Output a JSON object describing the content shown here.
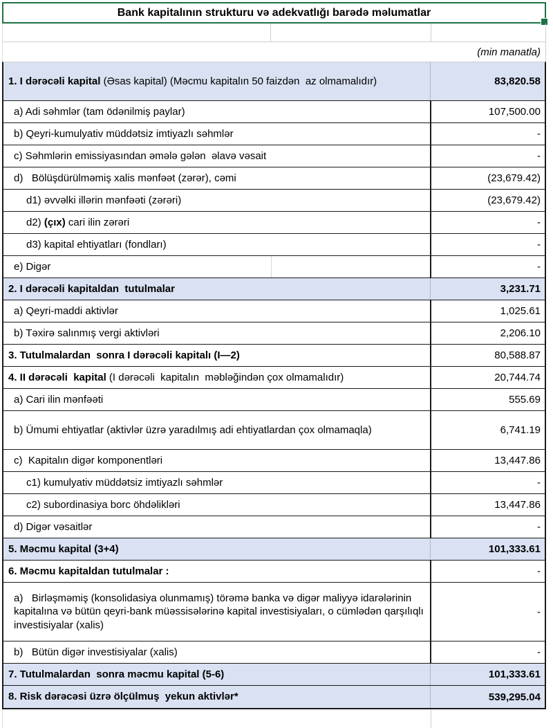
{
  "title": "Bank kapitalının strukturu və adekvatlığı barədə məlumatlar",
  "unit_note": "(min manatla)",
  "colors": {
    "highlight_blue": "#d9e1f2",
    "selection_green": "#1f7145",
    "border_dark": "#1a1a1a",
    "gridline_gray": "#cfcfcf"
  },
  "table": {
    "rows": [
      {
        "bold": "1. I dərəcəli kapital",
        "rest": " (Əsas kapital) (Məcmu kapitalın 50 faizdən  az olmamalıdır)",
        "value": "83,820.58"
      },
      {
        "pre": "a) Adi səhmlər (tam ödənilmiş paylar)",
        "value": "107,500.00"
      },
      {
        "pre": "b) Qeyri-kumulyativ müddətsiz imtiyazlı səhmlər",
        "value": "-"
      },
      {
        "pre": "c) Səhmlərin emissiyasından əmələ gələn  əlavə vəsait",
        "value": "-"
      },
      {
        "pre": "d)   Bölüşdürülməmiş xalis mənfəət (zərər), cəmi",
        "value": "(23,679.42)"
      },
      {
        "pre": "d1) əvvəlki illərin mənfəəti (zərəri)",
        "value": "(23,679.42)"
      },
      {
        "pre": "d2) ",
        "bold": "(çıx)",
        "rest": " cari ilin zərəri",
        "value": "-"
      },
      {
        "pre": "d3) kapital ehtiyatları (fondları)",
        "value": "-"
      },
      {
        "pre": "e) Digər",
        "value": "-"
      },
      {
        "bold": "2. I dərəcəli kapitaldan  tutulmalar",
        "value": "3,231.71"
      },
      {
        "pre": "a) Qeyri-maddi aktivlər",
        "value": "1,025.61"
      },
      {
        "pre": "b) Təxirə salınmış vergi aktivləri",
        "value": "2,206.10"
      },
      {
        "bold": "3. Tutulmalardan  sonra I dərəcəli kapitalı (I—2)",
        "value": "80,588.87"
      },
      {
        "bold": "4. II dərəcəli  kapital",
        "rest": " (I dərəcəli  kapitalın  məbləğindən çox olmamalıdır)",
        "value": "20,744.74"
      },
      {
        "pre": "a) Cari ilin mənfəəti",
        "value": "555.69"
      },
      {
        "pre": "b) Ümumi ehtiyatlar (aktivlər üzrə yaradılmış adi ehtiyatlardan çox olmamaqla)",
        "value": "6,741.19"
      },
      {
        "pre": "c)  Kapitalın digər komponentləri",
        "value": "13,447.86"
      },
      {
        "pre": "c1) kumulyativ müddətsiz imtiyazlı səhmlər",
        "value": "-"
      },
      {
        "pre": "c2) subordinasiya borc öhdəlikləri",
        "value": "13,447.86"
      },
      {
        "pre": "d) Digər vəsaitlər",
        "value": "-"
      },
      {
        "bold": "5. Məcmu kapital (3+4)",
        "value": "101,333.61"
      },
      {
        "bold": "6. Məcmu kapitaldan tutulmalar :",
        "value": "-"
      },
      {
        "pre": "a)   Birləşməmiş (konsolidasiya olunmamış) törəmə banka və digər maliyyə idarələrinin kapitalına və bütün qeyri-bank müəssisələrinə kapital investisiyaları, o cümlədən qarşılıqlı investisiyalar (xalis)",
        "value": "-"
      },
      {
        "pre": "b)   Bütün digər investisiyalar (xalis)",
        "value": "-"
      },
      {
        "bold": "7. Tutulmalardan  sonra məcmu kapital (5-6)",
        "value": "101,333.61"
      },
      {
        "bold": "8. Risk dərəcəsi üzrə ölçülmuş  yekun aktivlər*",
        "value": "539,295.04"
      }
    ]
  }
}
